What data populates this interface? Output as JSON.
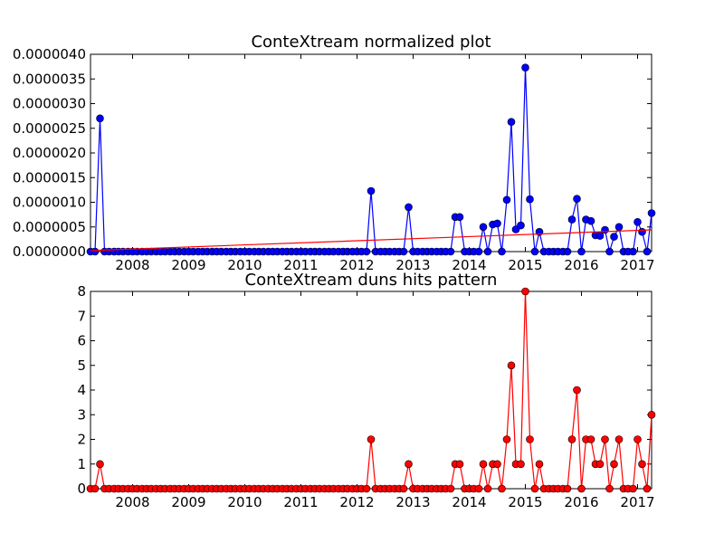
{
  "chart_data": [
    {
      "type": "line",
      "title": "ConteXtream normalized plot",
      "xlabel": "",
      "ylabel": "",
      "xlim": [
        2007.25,
        2017.25
      ],
      "ylim": [
        0,
        4e-06
      ],
      "x_ticks": [
        "2008",
        "2009",
        "2010",
        "2011",
        "2012",
        "2013",
        "2014",
        "2015",
        "2016",
        "2017"
      ],
      "y_ticks": [
        "0.0000000",
        "0.0000005",
        "0.0000010",
        "0.0000015",
        "0.0000020",
        "0.0000025",
        "0.0000030",
        "0.0000035",
        "0.0000040"
      ],
      "grid": false,
      "legend": "none",
      "series": [
        {
          "color": "#0000ff",
          "marker": "circle",
          "points": [
            [
              2007.25,
              0
            ],
            [
              2007.33,
              0
            ],
            [
              2007.42,
              2.7e-06
            ],
            [
              2007.5,
              0
            ],
            [
              2007.58,
              0
            ],
            [
              2007.67,
              0
            ],
            [
              2007.75,
              0
            ],
            [
              2007.83,
              0
            ],
            [
              2007.92,
              0
            ],
            [
              2008.0,
              0
            ],
            [
              2008.08,
              0
            ],
            [
              2008.17,
              0
            ],
            [
              2008.25,
              0
            ],
            [
              2008.33,
              0
            ],
            [
              2008.42,
              0
            ],
            [
              2008.5,
              0
            ],
            [
              2008.58,
              0
            ],
            [
              2008.67,
              0
            ],
            [
              2008.75,
              0
            ],
            [
              2008.83,
              0
            ],
            [
              2008.92,
              0
            ],
            [
              2009.0,
              0
            ],
            [
              2009.08,
              0
            ],
            [
              2009.17,
              0
            ],
            [
              2009.25,
              0
            ],
            [
              2009.33,
              0
            ],
            [
              2009.42,
              0
            ],
            [
              2009.5,
              0
            ],
            [
              2009.58,
              0
            ],
            [
              2009.67,
              0
            ],
            [
              2009.75,
              0
            ],
            [
              2009.83,
              0
            ],
            [
              2009.92,
              0
            ],
            [
              2010.0,
              0
            ],
            [
              2010.08,
              0
            ],
            [
              2010.17,
              0
            ],
            [
              2010.25,
              0
            ],
            [
              2010.33,
              0
            ],
            [
              2010.42,
              0
            ],
            [
              2010.5,
              0
            ],
            [
              2010.58,
              0
            ],
            [
              2010.67,
              0
            ],
            [
              2010.75,
              0
            ],
            [
              2010.83,
              0
            ],
            [
              2010.92,
              0
            ],
            [
              2011.0,
              0
            ],
            [
              2011.08,
              0
            ],
            [
              2011.17,
              0
            ],
            [
              2011.25,
              0
            ],
            [
              2011.33,
              0
            ],
            [
              2011.42,
              0
            ],
            [
              2011.5,
              0
            ],
            [
              2011.58,
              0
            ],
            [
              2011.67,
              0
            ],
            [
              2011.75,
              0
            ],
            [
              2011.83,
              0
            ],
            [
              2011.92,
              0
            ],
            [
              2012.0,
              0
            ],
            [
              2012.08,
              0
            ],
            [
              2012.17,
              0
            ],
            [
              2012.25,
              1.23e-06
            ],
            [
              2012.33,
              0
            ],
            [
              2012.42,
              0
            ],
            [
              2012.5,
              0
            ],
            [
              2012.58,
              0
            ],
            [
              2012.67,
              0
            ],
            [
              2012.75,
              0
            ],
            [
              2012.83,
              0
            ],
            [
              2012.92,
              9e-07
            ],
            [
              2013.0,
              0
            ],
            [
              2013.08,
              0
            ],
            [
              2013.17,
              0
            ],
            [
              2013.25,
              0
            ],
            [
              2013.33,
              0
            ],
            [
              2013.42,
              0
            ],
            [
              2013.5,
              0
            ],
            [
              2013.58,
              0
            ],
            [
              2013.67,
              0
            ],
            [
              2013.75,
              7e-07
            ],
            [
              2013.83,
              7e-07
            ],
            [
              2013.92,
              0
            ],
            [
              2014.0,
              0
            ],
            [
              2014.08,
              0
            ],
            [
              2014.17,
              0
            ],
            [
              2014.25,
              5e-07
            ],
            [
              2014.33,
              0
            ],
            [
              2014.42,
              5.5e-07
            ],
            [
              2014.5,
              5.7e-07
            ],
            [
              2014.58,
              0
            ],
            [
              2014.67,
              1.05e-06
            ],
            [
              2014.75,
              2.63e-06
            ],
            [
              2014.83,
              4.5e-07
            ],
            [
              2014.92,
              5.3e-07
            ],
            [
              2015.0,
              3.73e-06
            ],
            [
              2015.08,
              1.06e-06
            ],
            [
              2015.17,
              0
            ],
            [
              2015.25,
              4e-07
            ],
            [
              2015.33,
              0
            ],
            [
              2015.42,
              0
            ],
            [
              2015.5,
              0
            ],
            [
              2015.58,
              0
            ],
            [
              2015.67,
              0
            ],
            [
              2015.75,
              0
            ],
            [
              2015.83,
              6.5e-07
            ],
            [
              2015.92,
              1.07e-06
            ],
            [
              2016.0,
              0
            ],
            [
              2016.08,
              6.5e-07
            ],
            [
              2016.17,
              6.2e-07
            ],
            [
              2016.25,
              3.3e-07
            ],
            [
              2016.33,
              3.2e-07
            ],
            [
              2016.42,
              4.4e-07
            ],
            [
              2016.5,
              0
            ],
            [
              2016.58,
              3e-07
            ],
            [
              2016.67,
              5e-07
            ],
            [
              2016.75,
              0
            ],
            [
              2016.83,
              0
            ],
            [
              2016.92,
              0
            ],
            [
              2017.0,
              6e-07
            ],
            [
              2017.08,
              4e-07
            ],
            [
              2017.17,
              0
            ],
            [
              2017.25,
              7.8e-07
            ]
          ]
        },
        {
          "color": "#ff0000",
          "marker": "none",
          "points": [
            [
              2007.25,
              2e-08
            ],
            [
              2017.25,
              4.4e-07
            ]
          ]
        }
      ]
    },
    {
      "type": "line",
      "title": "ConteXtream duns hits pattern",
      "xlabel": "",
      "ylabel": "",
      "xlim": [
        2007.25,
        2017.25
      ],
      "ylim": [
        0,
        8
      ],
      "x_ticks": [
        "2008",
        "2009",
        "2010",
        "2011",
        "2012",
        "2013",
        "2014",
        "2015",
        "2016",
        "2017"
      ],
      "y_ticks": [
        "0",
        "1",
        "2",
        "3",
        "4",
        "5",
        "6",
        "7",
        "8"
      ],
      "grid": false,
      "legend": "none",
      "series": [
        {
          "color": "#ff0000",
          "marker": "circle",
          "points": [
            [
              2007.25,
              0
            ],
            [
              2007.33,
              0
            ],
            [
              2007.42,
              1
            ],
            [
              2007.5,
              0
            ],
            [
              2007.58,
              0
            ],
            [
              2007.67,
              0
            ],
            [
              2007.75,
              0
            ],
            [
              2007.83,
              0
            ],
            [
              2007.92,
              0
            ],
            [
              2008.0,
              0
            ],
            [
              2008.08,
              0
            ],
            [
              2008.17,
              0
            ],
            [
              2008.25,
              0
            ],
            [
              2008.33,
              0
            ],
            [
              2008.42,
              0
            ],
            [
              2008.5,
              0
            ],
            [
              2008.58,
              0
            ],
            [
              2008.67,
              0
            ],
            [
              2008.75,
              0
            ],
            [
              2008.83,
              0
            ],
            [
              2008.92,
              0
            ],
            [
              2009.0,
              0
            ],
            [
              2009.08,
              0
            ],
            [
              2009.17,
              0
            ],
            [
              2009.25,
              0
            ],
            [
              2009.33,
              0
            ],
            [
              2009.42,
              0
            ],
            [
              2009.5,
              0
            ],
            [
              2009.58,
              0
            ],
            [
              2009.67,
              0
            ],
            [
              2009.75,
              0
            ],
            [
              2009.83,
              0
            ],
            [
              2009.92,
              0
            ],
            [
              2010.0,
              0
            ],
            [
              2010.08,
              0
            ],
            [
              2010.17,
              0
            ],
            [
              2010.25,
              0
            ],
            [
              2010.33,
              0
            ],
            [
              2010.42,
              0
            ],
            [
              2010.5,
              0
            ],
            [
              2010.58,
              0
            ],
            [
              2010.67,
              0
            ],
            [
              2010.75,
              0
            ],
            [
              2010.83,
              0
            ],
            [
              2010.92,
              0
            ],
            [
              2011.0,
              0
            ],
            [
              2011.08,
              0
            ],
            [
              2011.17,
              0
            ],
            [
              2011.25,
              0
            ],
            [
              2011.33,
              0
            ],
            [
              2011.42,
              0
            ],
            [
              2011.5,
              0
            ],
            [
              2011.58,
              0
            ],
            [
              2011.67,
              0
            ],
            [
              2011.75,
              0
            ],
            [
              2011.83,
              0
            ],
            [
              2011.92,
              0
            ],
            [
              2012.0,
              0
            ],
            [
              2012.08,
              0
            ],
            [
              2012.17,
              0
            ],
            [
              2012.25,
              2
            ],
            [
              2012.33,
              0
            ],
            [
              2012.42,
              0
            ],
            [
              2012.5,
              0
            ],
            [
              2012.58,
              0
            ],
            [
              2012.67,
              0
            ],
            [
              2012.75,
              0
            ],
            [
              2012.83,
              0
            ],
            [
              2012.92,
              1
            ],
            [
              2013.0,
              0
            ],
            [
              2013.08,
              0
            ],
            [
              2013.17,
              0
            ],
            [
              2013.25,
              0
            ],
            [
              2013.33,
              0
            ],
            [
              2013.42,
              0
            ],
            [
              2013.5,
              0
            ],
            [
              2013.58,
              0
            ],
            [
              2013.67,
              0
            ],
            [
              2013.75,
              1
            ],
            [
              2013.83,
              1
            ],
            [
              2013.92,
              0
            ],
            [
              2014.0,
              0
            ],
            [
              2014.08,
              0
            ],
            [
              2014.17,
              0
            ],
            [
              2014.25,
              1
            ],
            [
              2014.33,
              0
            ],
            [
              2014.42,
              1
            ],
            [
              2014.5,
              1
            ],
            [
              2014.58,
              0
            ],
            [
              2014.67,
              2
            ],
            [
              2014.75,
              5
            ],
            [
              2014.83,
              1
            ],
            [
              2014.92,
              1
            ],
            [
              2015.0,
              8
            ],
            [
              2015.08,
              2
            ],
            [
              2015.17,
              0
            ],
            [
              2015.25,
              1
            ],
            [
              2015.33,
              0
            ],
            [
              2015.42,
              0
            ],
            [
              2015.5,
              0
            ],
            [
              2015.58,
              0
            ],
            [
              2015.67,
              0
            ],
            [
              2015.75,
              0
            ],
            [
              2015.83,
              2
            ],
            [
              2015.92,
              4
            ],
            [
              2016.0,
              0
            ],
            [
              2016.08,
              2
            ],
            [
              2016.17,
              2
            ],
            [
              2016.25,
              1
            ],
            [
              2016.33,
              1
            ],
            [
              2016.42,
              2
            ],
            [
              2016.5,
              0
            ],
            [
              2016.58,
              1
            ],
            [
              2016.67,
              2
            ],
            [
              2016.75,
              0
            ],
            [
              2016.83,
              0
            ],
            [
              2016.92,
              0
            ],
            [
              2017.0,
              2
            ],
            [
              2017.08,
              1
            ],
            [
              2017.17,
              0
            ],
            [
              2017.25,
              3
            ]
          ]
        }
      ]
    }
  ]
}
